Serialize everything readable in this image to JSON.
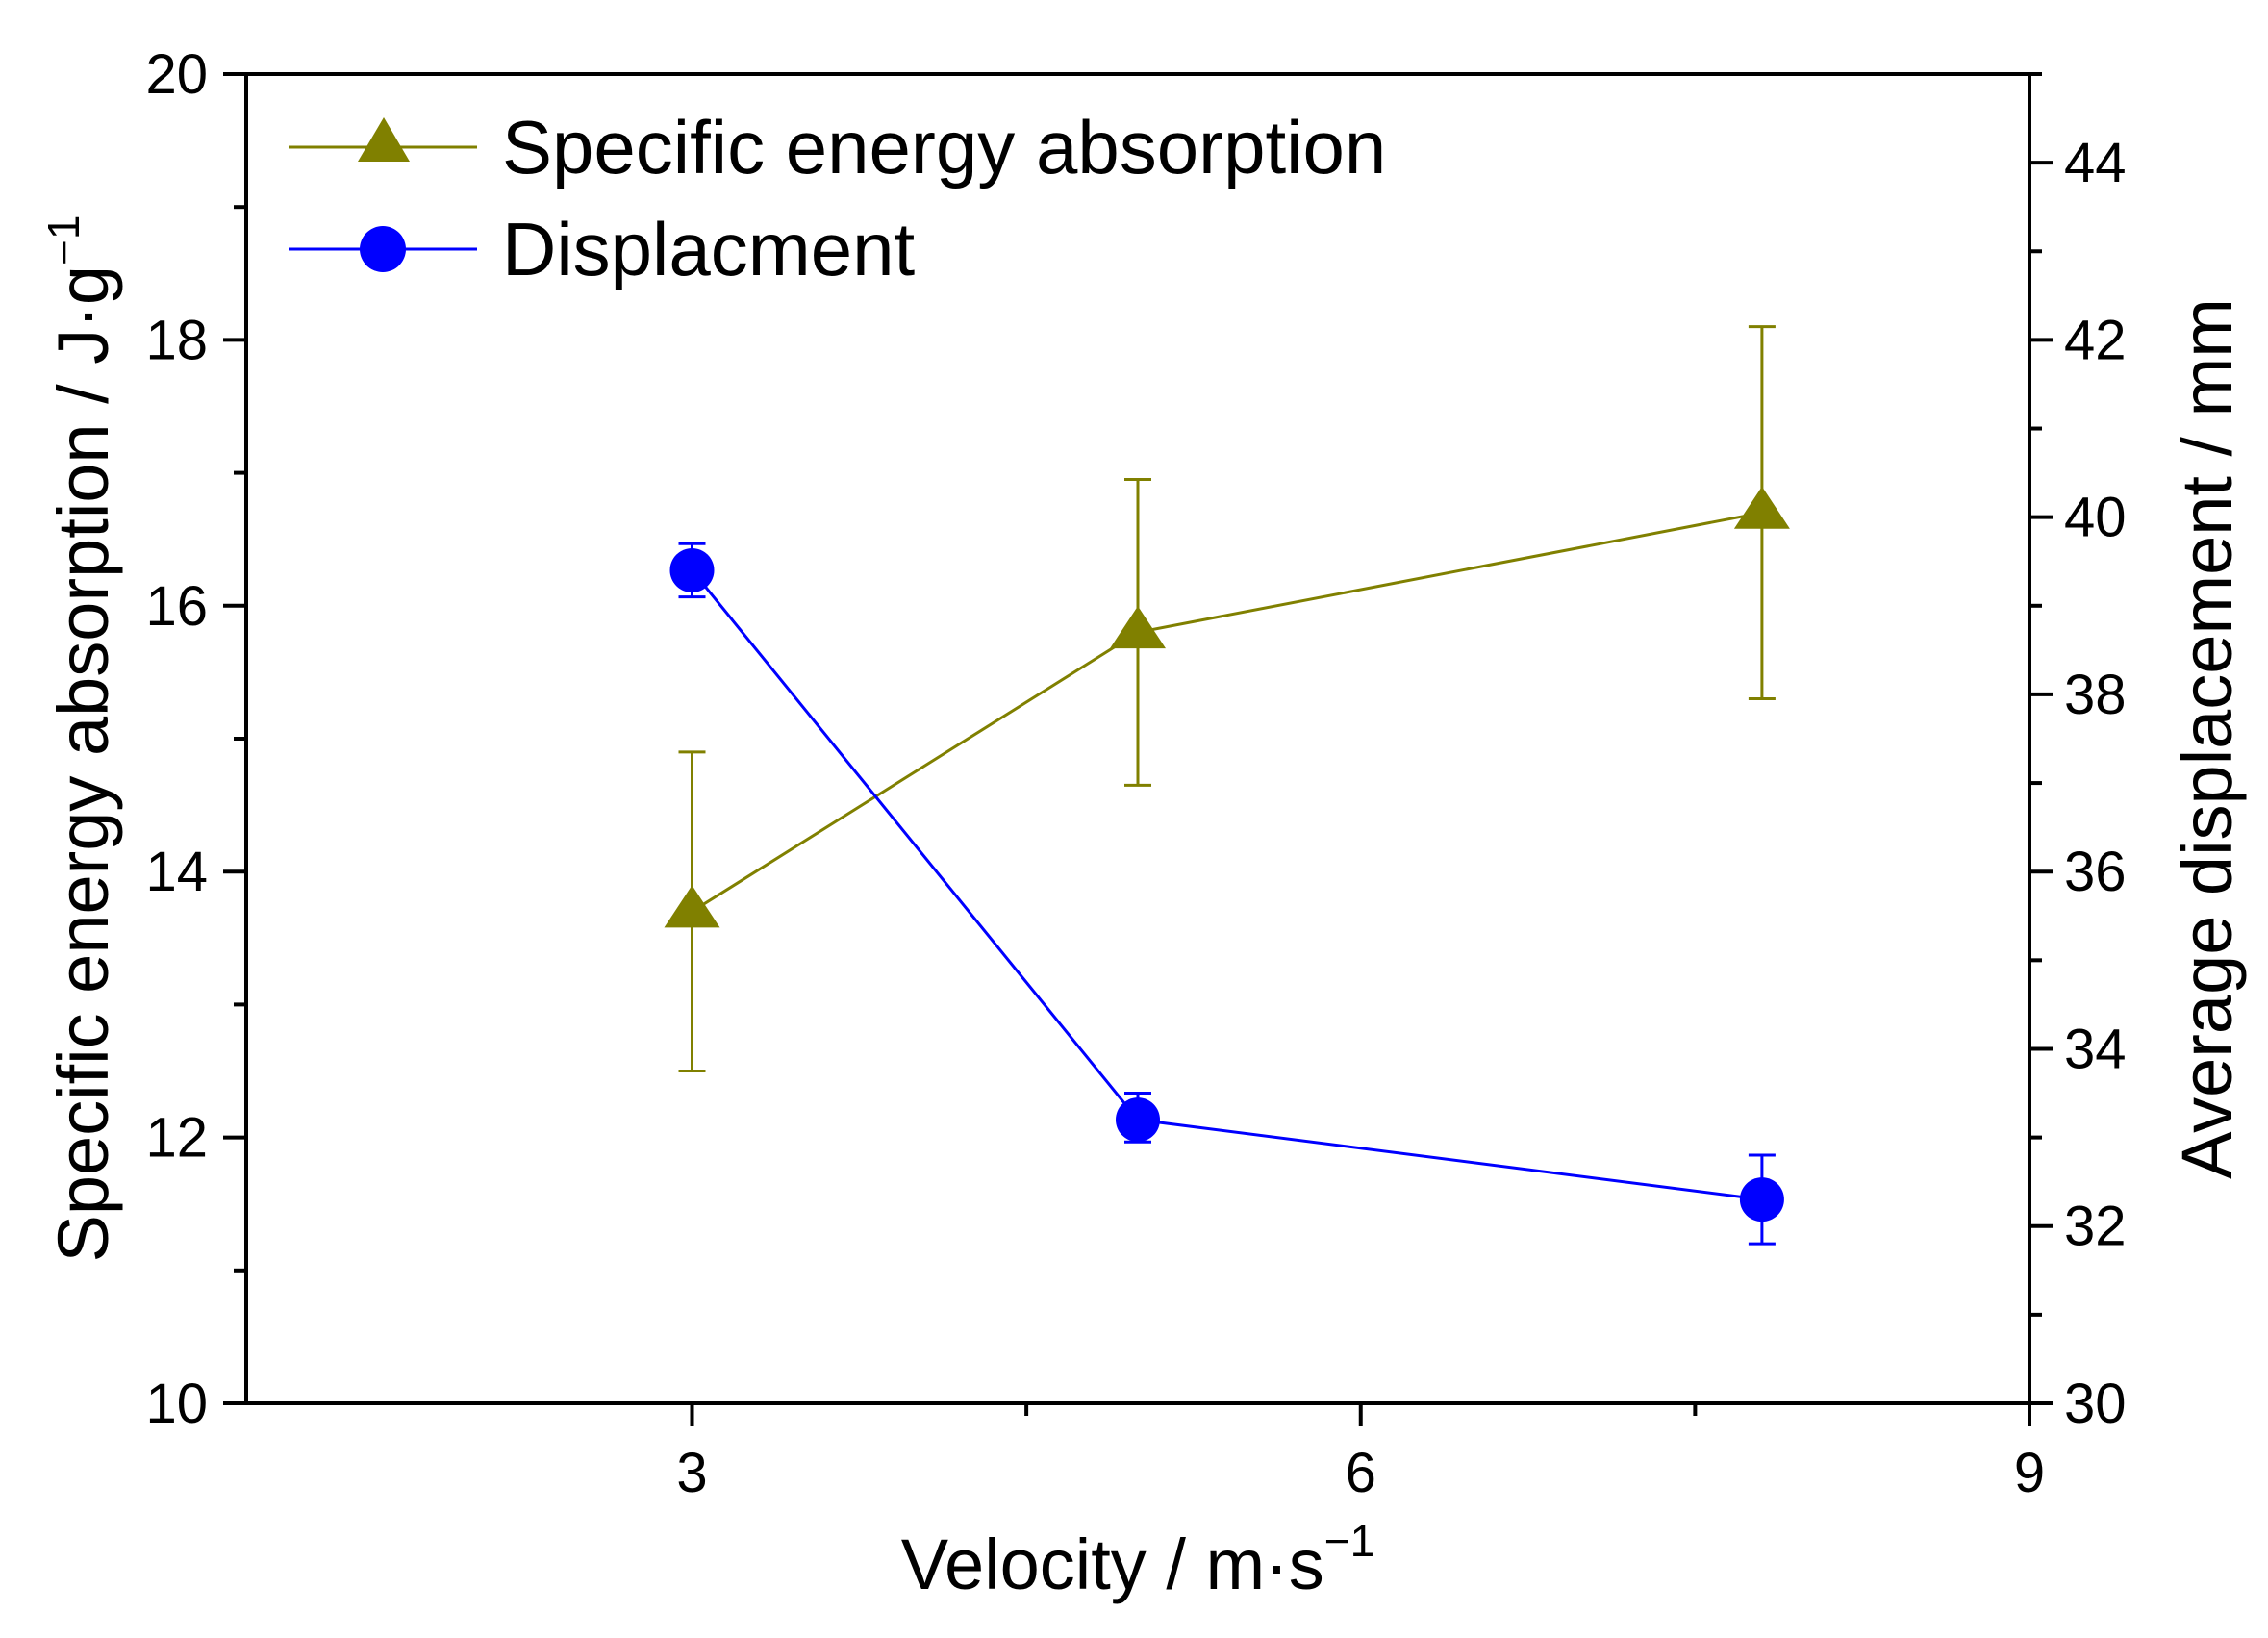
{
  "chart_data": {
    "type": "line",
    "x_axis": {
      "label_main": "Velocity / m·s",
      "label_sup": "−1",
      "range": [
        1,
        9
      ],
      "major_ticks": [
        3,
        6,
        9
      ],
      "minor_ticks": [
        4.5,
        7.5
      ],
      "tick_labels": [
        "3",
        "6",
        "9"
      ]
    },
    "y_axis_left": {
      "label_main": "Specific energy absorption / J·g",
      "label_sup": "−1",
      "range": [
        10,
        20
      ],
      "major_ticks": [
        10,
        12,
        14,
        16,
        18,
        20
      ],
      "minor_ticks": [
        11,
        13,
        15,
        17,
        19
      ],
      "tick_labels": [
        "10",
        "12",
        "14",
        "16",
        "18",
        "20"
      ]
    },
    "y_axis_right": {
      "label": "Average displacement / mm",
      "range": [
        30,
        45
      ],
      "major_ticks": [
        30,
        32,
        34,
        36,
        38,
        40,
        42,
        44
      ],
      "minor_ticks": [
        31,
        33,
        35,
        37,
        39,
        41,
        43,
        45
      ],
      "tick_labels": [
        "30",
        "32",
        "34",
        "36",
        "38",
        "40",
        "42",
        "44"
      ]
    },
    "series": [
      {
        "name": "Specific energy absorption",
        "axis": "left",
        "color": "#808000",
        "marker": "triangle",
        "x": [
          3,
          5,
          7.8
        ],
        "values": [
          13.7,
          15.8,
          16.7
        ],
        "error_low": [
          12.5,
          14.65,
          15.3
        ],
        "error_high": [
          14.9,
          16.95,
          18.1
        ]
      },
      {
        "name": "Displacment",
        "axis": "right",
        "color": "#0000ff",
        "marker": "circle",
        "x": [
          3,
          5,
          7.8
        ],
        "values": [
          39.4,
          33.2,
          32.3
        ],
        "error_low": [
          39.1,
          32.95,
          31.8
        ],
        "error_high": [
          39.7,
          33.5,
          32.8
        ]
      }
    ],
    "legend": {
      "position": "top-left",
      "entries": [
        "Specific energy absorption",
        "Displacment"
      ]
    },
    "grid": false
  }
}
